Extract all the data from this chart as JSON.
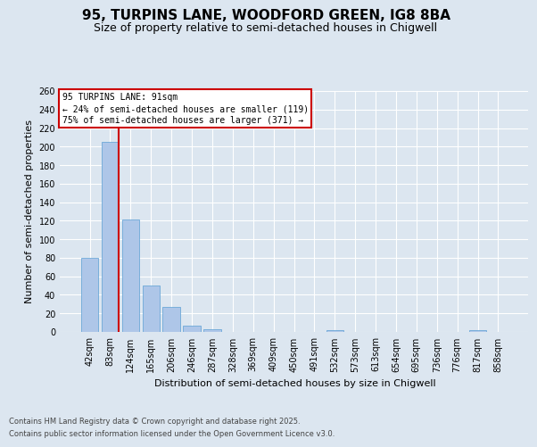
{
  "title_line1": "95, TURPINS LANE, WOODFORD GREEN, IG8 8BA",
  "title_line2": "Size of property relative to semi-detached houses in Chigwell",
  "xlabel": "Distribution of semi-detached houses by size in Chigwell",
  "ylabel": "Number of semi-detached properties",
  "categories": [
    "42sqm",
    "83sqm",
    "124sqm",
    "165sqm",
    "206sqm",
    "246sqm",
    "287sqm",
    "328sqm",
    "369sqm",
    "409sqm",
    "450sqm",
    "491sqm",
    "532sqm",
    "573sqm",
    "613sqm",
    "654sqm",
    "695sqm",
    "736sqm",
    "776sqm",
    "817sqm",
    "858sqm"
  ],
  "values": [
    80,
    205,
    121,
    50,
    27,
    7,
    3,
    0,
    0,
    0,
    0,
    0,
    2,
    0,
    0,
    0,
    0,
    0,
    0,
    2,
    0
  ],
  "bar_color": "#aec6e8",
  "bar_edge_color": "#5a9fd4",
  "vline_color": "#cc0000",
  "ylim": [
    0,
    260
  ],
  "yticks": [
    0,
    20,
    40,
    60,
    80,
    100,
    120,
    140,
    160,
    180,
    200,
    220,
    240,
    260
  ],
  "annotation_title": "95 TURPINS LANE: 91sqm",
  "annotation_line1": "← 24% of semi-detached houses are smaller (119)",
  "annotation_line2": "75% of semi-detached houses are larger (371) →",
  "annotation_box_color": "#cc0000",
  "footer_line1": "Contains HM Land Registry data © Crown copyright and database right 2025.",
  "footer_line2": "Contains public sector information licensed under the Open Government Licence v3.0.",
  "background_color": "#dce6f0",
  "plot_bg_color": "#dce6f0",
  "grid_color": "#ffffff",
  "title_fontsize": 11,
  "subtitle_fontsize": 9,
  "tick_fontsize": 7,
  "ylabel_fontsize": 8,
  "xlabel_fontsize": 8,
  "annotation_fontsize": 7,
  "footer_fontsize": 6
}
